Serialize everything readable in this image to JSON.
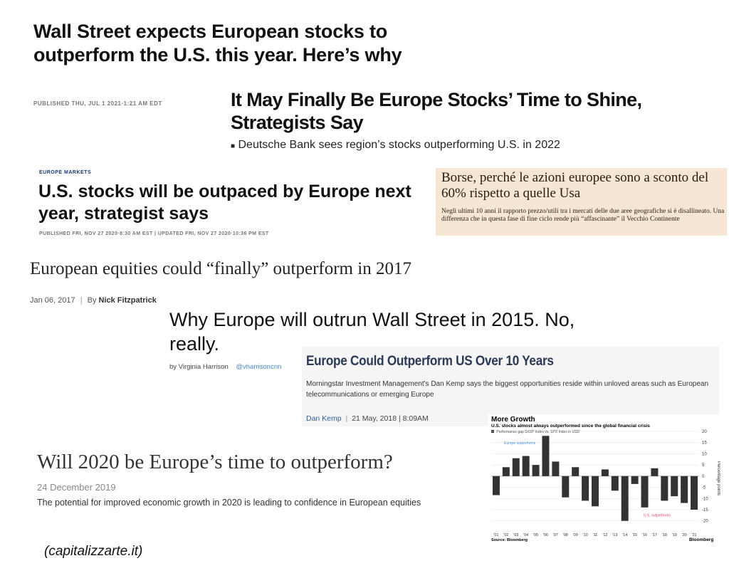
{
  "headline1": {
    "title": "Wall Street expects European stocks to outperform the U.S. this year. Here’s why",
    "date": "PUBLISHED THU, JUL 1 2021·1:21 AM EDT"
  },
  "headline2": {
    "title": "It May Finally Be Europe Stocks’ Time to Shine, Strategists Say",
    "bullet": "Deutsche Bank sees region’s stocks outperforming U.S. in 2022"
  },
  "headline3": {
    "kicker": "EUROPE MARKETS",
    "title": "U.S. stocks will be outpaced by Europe next year, strategist says",
    "date": "PUBLISHED FRI, NOV 27 2020·8:30 AM EST | UPDATED FRI, NOV 27 2020·10:36 PM EST"
  },
  "headline4": {
    "title": "Borse, perché le azioni europee sono a sconto del 60% rispetto a quelle Usa",
    "subtitle": "Negli ultimi 10 anni il rapporto prezzo/utili tra i mercati delle due aree geografiche si è disallineato. Una differenza che in questa fase di fine ciclo rende più “affascinante” il Vecchio Continente",
    "bg_color": "#f6e6d3"
  },
  "headline5": {
    "title": "European equities could “finally” outperform in 2017",
    "date": "Jan 06, 2017",
    "by": "By",
    "author": "Nick Fitzpatrick"
  },
  "headline6": {
    "title": "Why Europe will outrun Wall Street in 2015. No, really.",
    "by": "by Virginia Harrison",
    "handle": "@vharrisoncnn"
  },
  "headline7": {
    "title": "Europe Could Outperform US Over 10 Years",
    "subtitle": "Morningstar Investment Management's Dan Kemp says the biggest opportunities reside within unloved areas such as European telecommunications or emerging Europe",
    "author": "Dan Kemp",
    "date": "21 May, 2018 | 8:09AM"
  },
  "headline8": {
    "title": "Will 2020 be Europe’s time to outperform?",
    "date": "24 December 2019",
    "subtitle": "The potential for improved economic growth in 2020 is leading to confidence in European equities"
  },
  "credit": "(capitalizzarte.it)",
  "chart_data": {
    "type": "bar",
    "title": "More Growth",
    "subtitle": "U.S. stocks almost always outperformed since the global financial crisis",
    "legend": "Performance gap SXXP Index vs. SPX Index in USD",
    "annotation_top": "Europe outperforms",
    "annotation_bottom": "U.S. outperforms",
    "ylabel": "Percentage points",
    "categories": [
      "'01",
      "'02",
      "'03",
      "'04",
      "'05",
      "'06",
      "'07",
      "'08",
      "'09",
      "'10",
      "'11",
      "'12",
      "'13",
      "'14",
      "'15",
      "'16",
      "'17",
      "'18",
      "'19",
      "'20",
      "'21"
    ],
    "values": [
      -8.5,
      4,
      8,
      9,
      5,
      18,
      6.5,
      -9.5,
      4,
      -11,
      -13.5,
      3,
      -6.5,
      -20,
      -3.5,
      -14,
      3.5,
      -11,
      -9,
      -12,
      -15
    ],
    "ylim": [
      -22,
      20
    ],
    "yticks": [
      20,
      15,
      10,
      5,
      0,
      -5,
      -10,
      -15,
      -20
    ],
    "source": "Source: Bloomberg",
    "brand": "Bloomberg",
    "bar_color": "#333333",
    "accent_top": "#4a90d9",
    "accent_bottom": "#d94a6a"
  }
}
